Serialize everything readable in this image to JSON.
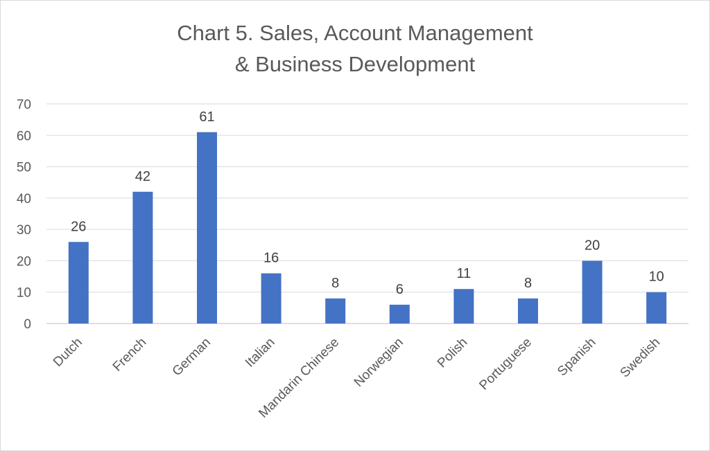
{
  "chart_data": {
    "type": "bar",
    "title_lines": [
      "Chart 5. Sales, Account Management",
      "& Business Development"
    ],
    "categories": [
      "Dutch",
      "French",
      "German",
      "Italian",
      "Mandarin Chinese",
      "Norwegian",
      "Polish",
      "Portuguese",
      "Spanish",
      "Swedish"
    ],
    "values": [
      26,
      42,
      61,
      16,
      8,
      6,
      11,
      8,
      20,
      10
    ],
    "yticks": [
      0,
      10,
      20,
      30,
      40,
      50,
      60,
      70
    ],
    "ylim": [
      0,
      70
    ],
    "grid": true,
    "legend": "none",
    "bar_color": "#4472c4",
    "data_labels": true
  }
}
